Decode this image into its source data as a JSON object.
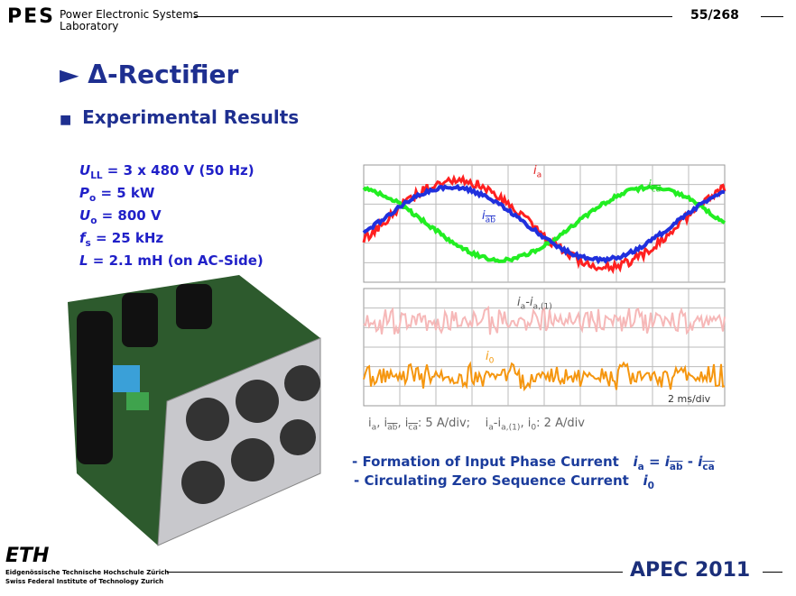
{
  "header": {
    "logo": "PES",
    "lab_line1": "Power Electronic Systems",
    "lab_line2": "Laboratory",
    "page": "55/268"
  },
  "title": "Δ-Rectifier",
  "section": "Experimental Results",
  "params": [
    {
      "var": "U",
      "sub": "LL",
      "rest": " = 3 x 480 V (50 Hz)"
    },
    {
      "var": "P",
      "sub": "o",
      "rest": " = 5 kW"
    },
    {
      "var": "U",
      "sub": "o",
      "rest": " = 800 V"
    },
    {
      "var": "f",
      "sub": "s",
      "rest": " = 25 kHz"
    },
    {
      "var": "L",
      "sub": "",
      "rest": " = 2.1 mH (on AC-Side)"
    }
  ],
  "scope": {
    "top_labels": [
      {
        "var": "i",
        "sub": "a"
      },
      {
        "var": "i",
        "sub": "ca"
      },
      {
        "var": "i",
        "sub": "ab"
      }
    ],
    "bottom_labels": [
      {
        "var": "i",
        "sub": "a",
        "mid": "-i",
        "sub2": "a,(1)"
      },
      {
        "var": "i",
        "sub": "0"
      }
    ],
    "timebase": "2 ms/div",
    "caption": [
      "i",
      "a",
      ", i",
      "ab",
      ", i",
      "ca",
      ": 5 A/div;",
      "i",
      "a",
      "-i",
      "a,(1)",
      ", i",
      "0",
      ": 2 A/div"
    ]
  },
  "bullets": [
    {
      "text": "- Formation of Input Phase Current",
      "formula": [
        "i",
        "a",
        " = ",
        "i",
        "ab",
        " - ",
        "i",
        "ca"
      ]
    },
    {
      "text": "- Circulating Zero Sequence Current",
      "formula": [
        "i",
        "0"
      ]
    }
  ],
  "footer": {
    "eth": "ETH",
    "line1": "Eidgenössische Technische Hochschule Zürich",
    "line2": "Swiss Federal Institute of Technology Zurich",
    "conference": "APEC 2011"
  }
}
